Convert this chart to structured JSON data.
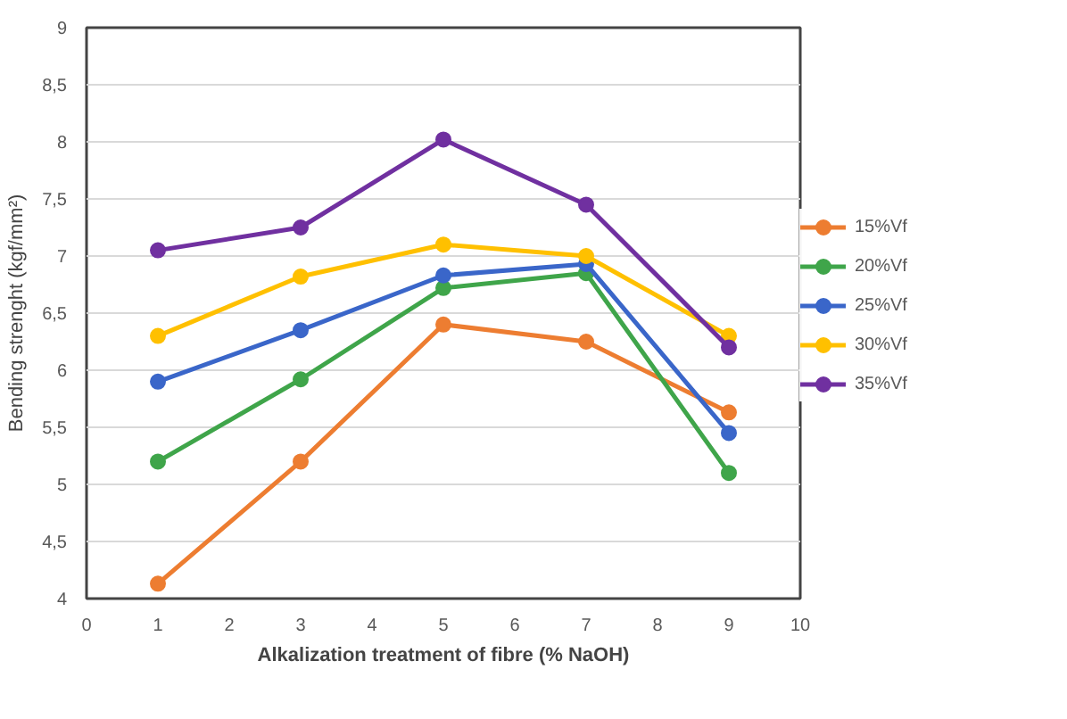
{
  "chart_data": {
    "type": "line",
    "xlabel": "Alkalization treatment of fibre (% NaOH)",
    "ylabel": "Bending strenght (kgf/mm²)",
    "x": [
      1,
      3,
      5,
      7,
      9
    ],
    "series": [
      {
        "name": "15%Vf",
        "color": "#ed7d31",
        "values": [
          4.13,
          5.2,
          6.4,
          6.25,
          5.63
        ]
      },
      {
        "name": "20%Vf",
        "color": "#3fa54a",
        "values": [
          5.2,
          5.92,
          6.72,
          6.85,
          5.1
        ]
      },
      {
        "name": "25%Vf",
        "color": "#3a66c9",
        "values": [
          5.9,
          6.35,
          6.83,
          6.93,
          5.45
        ]
      },
      {
        "name": "30%Vf",
        "color": "#ffc000",
        "values": [
          6.3,
          6.82,
          7.1,
          7.0,
          6.3
        ]
      },
      {
        "name": "35%Vf",
        "color": "#7030a0",
        "values": [
          7.05,
          7.25,
          8.02,
          7.45,
          6.2
        ]
      }
    ],
    "xlim": [
      0,
      10
    ],
    "xticks": [
      0,
      1,
      2,
      3,
      4,
      5,
      6,
      7,
      8,
      9,
      10
    ],
    "ylim": [
      4,
      9
    ],
    "yticks": [
      4,
      {
        "value": 4.5,
        "label": "4,5"
      },
      5,
      {
        "value": 5.5,
        "label": "5,5"
      },
      6,
      {
        "value": 6.5,
        "label": "6,5"
      },
      7,
      {
        "value": 7.5,
        "label": "7,5"
      },
      8,
      {
        "value": 8.5,
        "label": "8,5"
      },
      9
    ],
    "grid": "y",
    "legend": "right",
    "marker": "circle",
    "line_style": "solid"
  }
}
